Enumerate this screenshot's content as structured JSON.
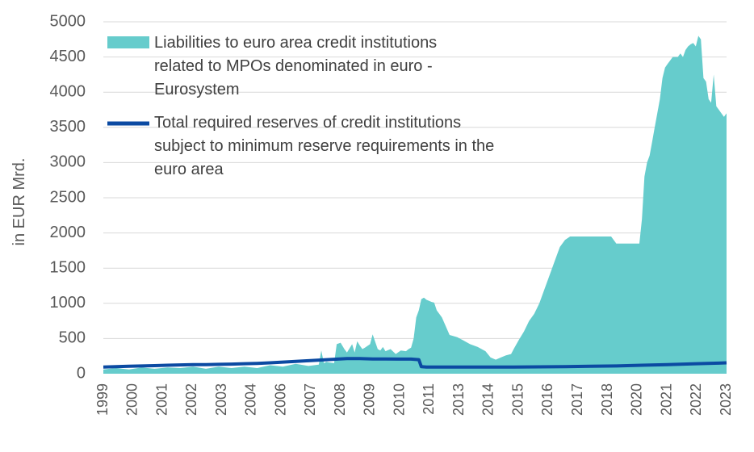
{
  "chart_data": {
    "type": "area",
    "title": "",
    "xlabel": "",
    "ylabel": "in EUR Mrd.",
    "ylim": [
      0,
      5000
    ],
    "yticks": [
      "0",
      "500",
      "1000",
      "1500",
      "2000",
      "2500",
      "3000",
      "3500",
      "4000",
      "4500",
      "5000"
    ],
    "xlim": [
      1999.0,
      2023.3
    ],
    "xticks": [
      "1999",
      "2000",
      "2001",
      "2002",
      "2003",
      "2004",
      "2006",
      "2007",
      "2008",
      "2009",
      "2010",
      "2011",
      "2013",
      "2014",
      "2015",
      "2016",
      "2017",
      "2018",
      "2020",
      "2021",
      "2022",
      "2023"
    ],
    "grid": true,
    "legend_position": "top-left",
    "series": [
      {
        "name": "Liabilities to euro area credit institutions related to MPOs denominated in euro - Eurosystem",
        "type": "area",
        "color": "#66CCCC",
        "x": [
          1999.0,
          1999.5,
          2000.0,
          2000.5,
          2001.0,
          2001.5,
          2002.0,
          2002.5,
          2003.0,
          2003.5,
          2004.0,
          2004.5,
          2005.0,
          2005.5,
          2006.0,
          2006.5,
          2007.0,
          2007.4,
          2007.5,
          2007.6,
          2007.7,
          2007.8,
          2008.0,
          2008.1,
          2008.25,
          2008.4,
          2008.5,
          2008.7,
          2008.8,
          2008.9,
          2009.0,
          2009.1,
          2009.2,
          2009.4,
          2009.5,
          2009.7,
          2009.8,
          2009.9,
          2010.0,
          2010.2,
          2010.4,
          2010.6,
          2010.8,
          2010.9,
          2011.0,
          2011.1,
          2011.2,
          2011.3,
          2011.4,
          2011.5,
          2011.6,
          2011.8,
          2011.9,
          2012.0,
          2012.2,
          2012.5,
          2012.8,
          2013.0,
          2013.3,
          2013.6,
          2013.9,
          2014.1,
          2014.3,
          2014.5,
          2014.7,
          2014.9,
          2015.0,
          2015.2,
          2015.4,
          2015.6,
          2015.8,
          2016.0,
          2016.2,
          2016.4,
          2016.6,
          2016.8,
          2017.0,
          2017.2,
          2017.4,
          2017.6,
          2017.8,
          2018.0,
          2018.2,
          2018.4,
          2018.6,
          2018.8,
          2019.0,
          2019.2,
          2019.4,
          2019.6,
          2019.8,
          2019.9,
          2020.0,
          2020.1,
          2020.2,
          2020.3,
          2020.4,
          2020.5,
          2020.6,
          2020.7,
          2020.8,
          2020.9,
          2021.0,
          2021.1,
          2021.2,
          2021.3,
          2021.4,
          2021.5,
          2021.6,
          2021.7,
          2021.8,
          2021.9,
          2022.0,
          2022.1,
          2022.2,
          2022.3,
          2022.4,
          2022.5,
          2022.6,
          2022.7,
          2022.8,
          2022.9,
          2023.0,
          2023.1,
          2023.2,
          2023.3
        ],
        "values": [
          60,
          80,
          60,
          90,
          70,
          90,
          80,
          100,
          70,
          100,
          80,
          100,
          80,
          120,
          100,
          140,
          110,
          130,
          330,
          150,
          170,
          160,
          150,
          420,
          440,
          350,
          300,
          420,
          300,
          460,
          400,
          350,
          370,
          420,
          560,
          350,
          330,
          380,
          320,
          350,
          280,
          330,
          320,
          350,
          370,
          500,
          800,
          900,
          1060,
          1080,
          1050,
          1020,
          1010,
          900,
          800,
          550,
          520,
          480,
          420,
          380,
          320,
          230,
          200,
          230,
          260,
          280,
          350,
          480,
          600,
          750,
          850,
          1000,
          1200,
          1400,
          1600,
          1800,
          1900,
          1950,
          1950,
          1950,
          1950,
          1950,
          1950,
          1950,
          1950,
          1950,
          1850,
          1850,
          1850,
          1850,
          1850,
          1850,
          2200,
          2800,
          3000,
          3100,
          3300,
          3500,
          3700,
          3900,
          4200,
          4350,
          4400,
          4450,
          4500,
          4500,
          4500,
          4550,
          4500,
          4600,
          4650,
          4680,
          4700,
          4650,
          4800,
          4750,
          4200,
          4150,
          3900,
          3850,
          4250,
          3800,
          3750,
          3700,
          3650,
          3700
        ]
      },
      {
        "name": "Total required reserves of credit institutions subject to minimum reserve requirements in the euro area",
        "type": "line",
        "color": "#0B4AA2",
        "x": [
          1999.0,
          1999.5,
          2000.0,
          2000.5,
          2001.0,
          2001.5,
          2002.0,
          2002.5,
          2003.0,
          2003.5,
          2004.0,
          2004.5,
          2005.0,
          2005.5,
          2006.0,
          2006.5,
          2007.0,
          2007.5,
          2008.0,
          2008.5,
          2009.0,
          2009.5,
          2010.0,
          2010.5,
          2011.0,
          2011.3,
          2011.4,
          2011.6,
          2012.0,
          2013.0,
          2014.0,
          2015.0,
          2016.0,
          2017.0,
          2018.0,
          2019.0,
          2020.0,
          2021.0,
          2022.0,
          2023.0,
          2023.3
        ],
        "values": [
          95,
          100,
          105,
          110,
          115,
          120,
          125,
          130,
          128,
          133,
          137,
          142,
          147,
          155,
          165,
          175,
          185,
          195,
          205,
          215,
          215,
          210,
          210,
          208,
          208,
          200,
          100,
          95,
          95,
          95,
          95,
          95,
          97,
          100,
          105,
          110,
          120,
          130,
          140,
          150,
          155
        ]
      }
    ]
  }
}
